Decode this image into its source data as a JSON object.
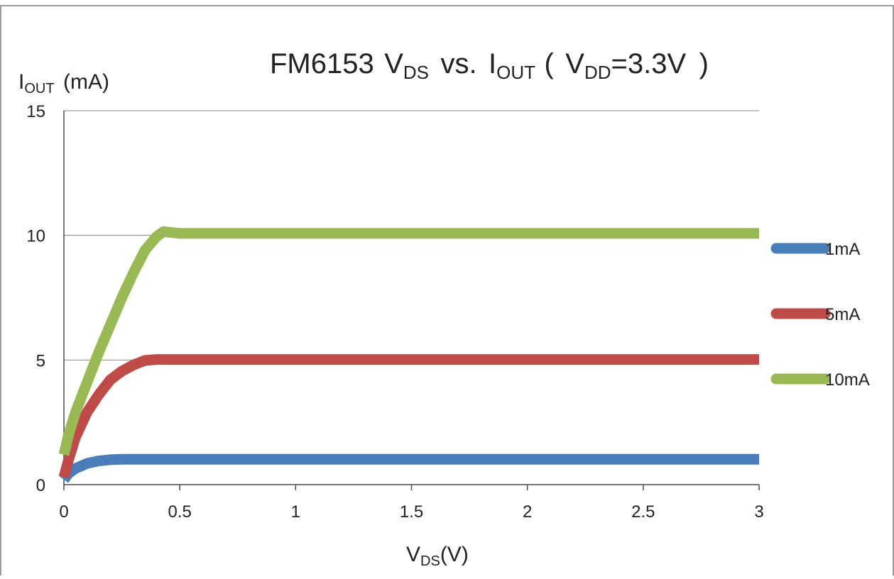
{
  "chart_data": {
    "type": "line",
    "title": {
      "part": "FM6153",
      "vds_main": "V",
      "vds_sub": "DS",
      "vs": "vs.",
      "iout_main": "I",
      "iout_sub": "OUT",
      "open": "(",
      "vdd_main": "V",
      "vdd_sub": "DD",
      "vdd_value": "=3.3V",
      "close": ")"
    },
    "ylabel": {
      "main": "I",
      "sub": "OUT",
      "unit": "(mA)"
    },
    "xlabel": {
      "main": "V",
      "sub": "DS",
      "unit": "(V)"
    },
    "xlim": [
      0,
      3
    ],
    "ylim": [
      0,
      15
    ],
    "x_ticks": [
      {
        "value": 0,
        "label": "0"
      },
      {
        "value": 0.5,
        "label": "0.5"
      },
      {
        "value": 1,
        "label": "1"
      },
      {
        "value": 1.5,
        "label": "1.5"
      },
      {
        "value": 2,
        "label": "2"
      },
      {
        "value": 2.5,
        "label": "2.5"
      },
      {
        "value": 3,
        "label": "3"
      }
    ],
    "y_ticks": [
      {
        "value": 0,
        "label": "0"
      },
      {
        "value": 5,
        "label": "5"
      },
      {
        "value": 10,
        "label": "10"
      },
      {
        "value": 15,
        "label": "15"
      }
    ],
    "grid": "horizontal",
    "legend_position": "right",
    "series": [
      {
        "name": "1mA",
        "color": "#4a7ebb",
        "x": [
          0,
          0.02,
          0.05,
          0.1,
          0.15,
          0.2,
          0.25,
          0.3,
          0.5,
          1,
          1.5,
          2,
          2.5,
          3
        ],
        "y": [
          0.2,
          0.45,
          0.65,
          0.85,
          0.95,
          1.0,
          1.02,
          1.02,
          1.02,
          1.02,
          1.02,
          1.02,
          1.02,
          1.02
        ]
      },
      {
        "name": "5mA",
        "color": "#be4b48",
        "x": [
          0,
          0.02,
          0.05,
          0.1,
          0.15,
          0.2,
          0.25,
          0.3,
          0.35,
          0.4,
          0.5,
          1,
          1.5,
          2,
          2.5,
          3
        ],
        "y": [
          0.3,
          1.0,
          1.9,
          2.9,
          3.6,
          4.2,
          4.55,
          4.8,
          4.98,
          5.02,
          5.02,
          5.02,
          5.02,
          5.02,
          5.02,
          5.02
        ]
      },
      {
        "name": "10mA",
        "color": "#98b954",
        "x": [
          0,
          0.02,
          0.05,
          0.1,
          0.15,
          0.2,
          0.25,
          0.3,
          0.35,
          0.4,
          0.43,
          0.46,
          0.5,
          1,
          1.5,
          2,
          2.5,
          3
        ],
        "y": [
          1.2,
          2.0,
          2.9,
          4.1,
          5.3,
          6.4,
          7.5,
          8.5,
          9.4,
          9.95,
          10.15,
          10.12,
          10.08,
          10.08,
          10.08,
          10.08,
          10.08,
          10.08
        ]
      }
    ]
  }
}
